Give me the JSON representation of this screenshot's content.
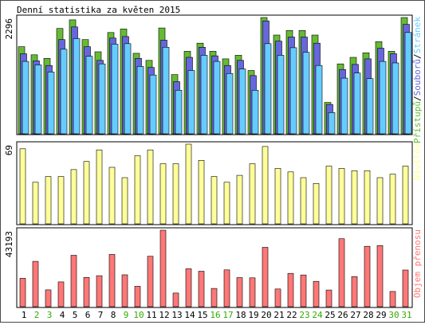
{
  "title": "Denní statistika za květen 2015",
  "colors": {
    "hits": "#66bb33",
    "files": "#6666dd",
    "pages": "#66ccff",
    "visits": "#ffff99",
    "volume": "#ff7777",
    "weekend_label": "#33aa00",
    "weekday_label": "#000000",
    "frame": "#000000"
  },
  "chart_data": [
    {
      "type": "bar",
      "categories": [
        "1",
        "2",
        "3",
        "4",
        "5",
        "6",
        "7",
        "8",
        "9",
        "10",
        "11",
        "12",
        "13",
        "14",
        "15",
        "16",
        "17",
        "18",
        "19",
        "20",
        "21",
        "22",
        "23",
        "24",
        "25",
        "26",
        "27",
        "28",
        "29",
        "30",
        "31"
      ],
      "weekend_days": [
        "2",
        "3",
        "9",
        "10",
        "16",
        "17",
        "23",
        "24",
        "30",
        "31"
      ],
      "ylabel": "2296",
      "ymax": 2296,
      "legend": [
        "Přístupů",
        "Souborů",
        "Stránek"
      ],
      "legend_separator": "/",
      "series": [
        {
          "name": "Přístupů",
          "color_key": "hits",
          "values": [
            1720,
            1560,
            1490,
            2080,
            2250,
            1860,
            1620,
            2000,
            2070,
            1590,
            1450,
            2090,
            1170,
            1630,
            1790,
            1630,
            1480,
            1550,
            1250,
            2296,
            1950,
            2040,
            2040,
            1950,
            620,
            1380,
            1510,
            1600,
            1820,
            1630,
            2296
          ]
        },
        {
          "name": "Souborů",
          "color_key": "files",
          "values": [
            1580,
            1440,
            1350,
            1860,
            2110,
            1720,
            1450,
            1890,
            1920,
            1490,
            1310,
            1850,
            1030,
            1510,
            1710,
            1540,
            1350,
            1450,
            1150,
            2230,
            1830,
            1910,
            1910,
            1790,
            580,
            1270,
            1370,
            1480,
            1690,
            1580,
            2160
          ]
        },
        {
          "name": "Stránek",
          "color_key": "pages",
          "values": [
            1430,
            1360,
            1220,
            1670,
            1880,
            1530,
            1380,
            1770,
            1780,
            1330,
            1160,
            1710,
            860,
            1250,
            1550,
            1430,
            1190,
            1280,
            860,
            1780,
            1550,
            1700,
            1610,
            1350,
            420,
            1100,
            1200,
            1090,
            1430,
            1400,
            2000
          ]
        }
      ]
    },
    {
      "type": "bar",
      "categories": [
        "1",
        "2",
        "3",
        "4",
        "5",
        "6",
        "7",
        "8",
        "9",
        "10",
        "11",
        "12",
        "13",
        "14",
        "15",
        "16",
        "17",
        "18",
        "19",
        "20",
        "21",
        "22",
        "23",
        "24",
        "25",
        "26",
        "27",
        "28",
        "29",
        "30",
        "31"
      ],
      "ylabel": "69",
      "ymax": 69,
      "legend": [
        "Návštěv"
      ],
      "series": [
        {
          "name": "Návštěv",
          "color_key": "visits",
          "values": [
            65,
            36,
            41,
            41,
            47,
            54,
            64,
            49,
            40,
            59,
            64,
            52,
            52,
            69,
            55,
            41,
            36,
            42,
            52,
            67,
            48,
            45,
            40,
            35,
            50,
            48,
            46,
            46,
            40,
            43,
            50
          ]
        }
      ]
    },
    {
      "type": "bar",
      "categories": [
        "1",
        "2",
        "3",
        "4",
        "5",
        "6",
        "7",
        "8",
        "9",
        "10",
        "11",
        "12",
        "13",
        "14",
        "15",
        "16",
        "17",
        "18",
        "19",
        "20",
        "21",
        "22",
        "23",
        "24",
        "25",
        "26",
        "27",
        "28",
        "29",
        "30",
        "31"
      ],
      "ylabel": "43193",
      "ymax": 43193,
      "legend": [
        "Objem přenosu"
      ],
      "series": [
        {
          "name": "Objem přenosu",
          "color_key": "volume",
          "values": [
            16000,
            25600,
            9500,
            14000,
            29000,
            16500,
            17500,
            29500,
            18000,
            11500,
            28500,
            43193,
            7700,
            21400,
            20000,
            10300,
            20800,
            16400,
            16300,
            33500,
            10000,
            18800,
            17900,
            14300,
            9400,
            38400,
            17000,
            34100,
            34500,
            8600,
            20700
          ]
        }
      ]
    }
  ]
}
